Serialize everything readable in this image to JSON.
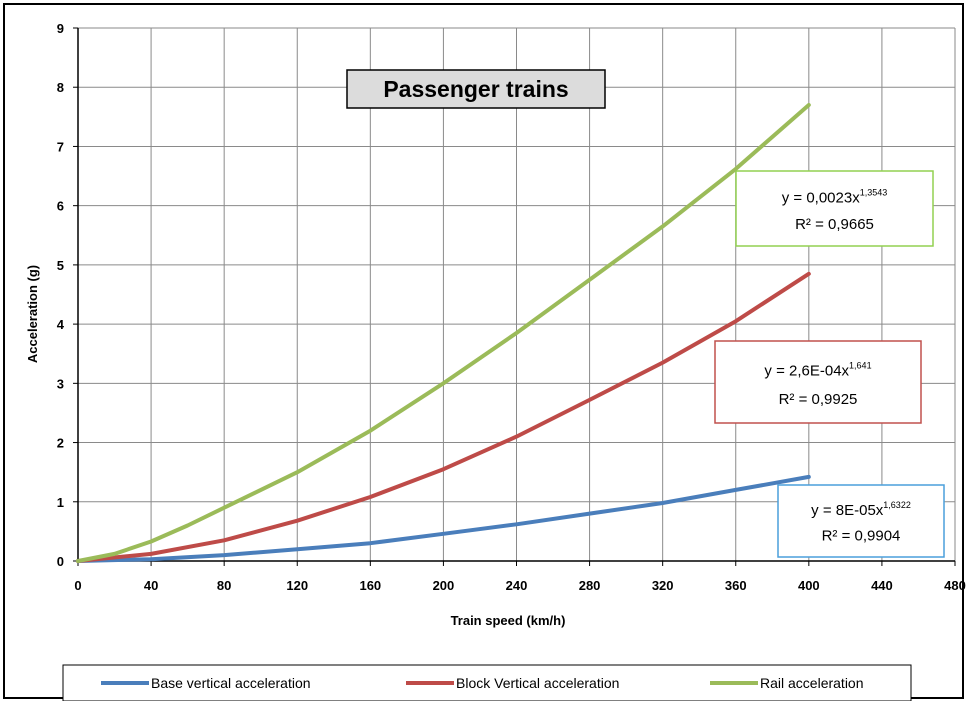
{
  "chart_data": {
    "type": "line",
    "title": "Passenger trains",
    "xlabel": "Train speed (km/h)",
    "ylabel": "Acceleration (g)",
    "xlim": [
      0,
      480
    ],
    "ylim": [
      0,
      9
    ],
    "xticks": [
      0,
      40,
      80,
      120,
      160,
      200,
      240,
      280,
      320,
      360,
      400,
      440,
      480
    ],
    "yticks": [
      0,
      1,
      2,
      3,
      4,
      5,
      6,
      7,
      8,
      9
    ],
    "grid": true,
    "legend_position": "bottom",
    "series": [
      {
        "name": "Base vertical acceleration",
        "color": "#4a7ebb",
        "x": [
          0,
          40,
          80,
          120,
          160,
          200,
          240,
          280,
          320,
          360,
          400
        ],
        "y": [
          0,
          0.03,
          0.1,
          0.2,
          0.3,
          0.46,
          0.62,
          0.8,
          0.98,
          1.2,
          1.42
        ],
        "trendline": {
          "equation": "y = 8E-05x",
          "exponent": "1,6322",
          "r2": "R² = 0,9904",
          "border_color": "#4a9fdc"
        }
      },
      {
        "name": "Block Vertical acceleration",
        "color": "#be4b48",
        "x": [
          0,
          40,
          80,
          120,
          160,
          200,
          240,
          280,
          320,
          360,
          400
        ],
        "y": [
          0,
          0.12,
          0.35,
          0.68,
          1.08,
          1.55,
          2.1,
          2.72,
          3.35,
          4.05,
          4.85
        ],
        "trendline": {
          "equation": "y = 2,6E-04x",
          "exponent": "1,641",
          "r2": "R² = 0,9925",
          "border_color": "#c0504d"
        }
      },
      {
        "name": "Rail acceleration",
        "color": "#9bbb59",
        "x": [
          0,
          20,
          40,
          60,
          80,
          120,
          160,
          200,
          240,
          280,
          320,
          360,
          400
        ],
        "y": [
          0,
          0.12,
          0.33,
          0.6,
          0.9,
          1.5,
          2.2,
          3.0,
          3.85,
          4.75,
          5.65,
          6.62,
          7.7
        ],
        "trendline": {
          "equation": "y = 0,0023x",
          "exponent": "1,3543",
          "r2": "R² = 0,9665",
          "border_color": "#92d050"
        }
      }
    ]
  }
}
